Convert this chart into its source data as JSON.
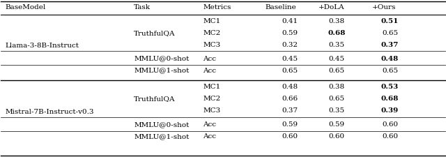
{
  "col_x": {
    "basemodel": 0.01,
    "task": 0.3,
    "metric": 0.455,
    "baseline": 0.595,
    "dola": 0.715,
    "ours": 0.835
  },
  "header": {
    "basemodel": "BaseModel",
    "task": "Task",
    "metric": "Metrics",
    "baseline": "Baseline",
    "dola": "+DoLA",
    "ours": "+Ours"
  },
  "font_size": 7.5,
  "figsize": [
    6.4,
    2.25
  ],
  "dpi": 100,
  "llama_label": "Llama-3-8B-Instruct",
  "mistral_label": "Mistral-7B-Instruct-v0.3",
  "rows": [
    {
      "section": "llama",
      "type": "tqa",
      "metric": "MC1",
      "task_label": null,
      "baseline": "0.41",
      "dola": "0.38",
      "ours": "0.51",
      "ours_bold": true,
      "dola_bold": false
    },
    {
      "section": "llama",
      "type": "tqa",
      "metric": "MC2",
      "task_label": "TruthfulQA",
      "baseline": "0.59",
      "dola": "0.68",
      "ours": "0.65",
      "ours_bold": false,
      "dola_bold": true
    },
    {
      "section": "llama",
      "type": "tqa",
      "metric": "MC3",
      "task_label": null,
      "baseline": "0.32",
      "dola": "0.35",
      "ours": "0.37",
      "ours_bold": true,
      "dola_bold": false
    },
    {
      "section": "llama",
      "type": "mmlu0",
      "metric": "Acc",
      "task_label": "MMLU@0-shot",
      "baseline": "0.45",
      "dola": "0.45",
      "ours": "0.48",
      "ours_bold": true,
      "dola_bold": false
    },
    {
      "section": "llama",
      "type": "mmlu1",
      "metric": "Acc",
      "task_label": "MMLU@1-shot",
      "baseline": "0.65",
      "dola": "0.65",
      "ours": "0.65",
      "ours_bold": false,
      "dola_bold": false
    },
    {
      "section": "mistral",
      "type": "tqa",
      "metric": "MC1",
      "task_label": null,
      "baseline": "0.48",
      "dola": "0.38",
      "ours": "0.53",
      "ours_bold": true,
      "dola_bold": false
    },
    {
      "section": "mistral",
      "type": "tqa",
      "metric": "MC2",
      "task_label": "TruthfulQA",
      "baseline": "0.66",
      "dola": "0.65",
      "ours": "0.68",
      "ours_bold": true,
      "dola_bold": false
    },
    {
      "section": "mistral",
      "type": "tqa",
      "metric": "MC3",
      "task_label": null,
      "baseline": "0.37",
      "dola": "0.35",
      "ours": "0.39",
      "ours_bold": true,
      "dola_bold": false
    },
    {
      "section": "mistral",
      "type": "mmlu0",
      "metric": "Acc",
      "task_label": "MMLU@0-shot",
      "baseline": "0.59",
      "dola": "0.59",
      "ours": "0.60",
      "ours_bold": false,
      "dola_bold": false
    },
    {
      "section": "mistral",
      "type": "mmlu1",
      "metric": "Acc",
      "task_label": "MMLU@1-shot",
      "baseline": "0.60",
      "dola": "0.60",
      "ours": "0.60",
      "ours_bold": false,
      "dola_bold": false
    }
  ]
}
